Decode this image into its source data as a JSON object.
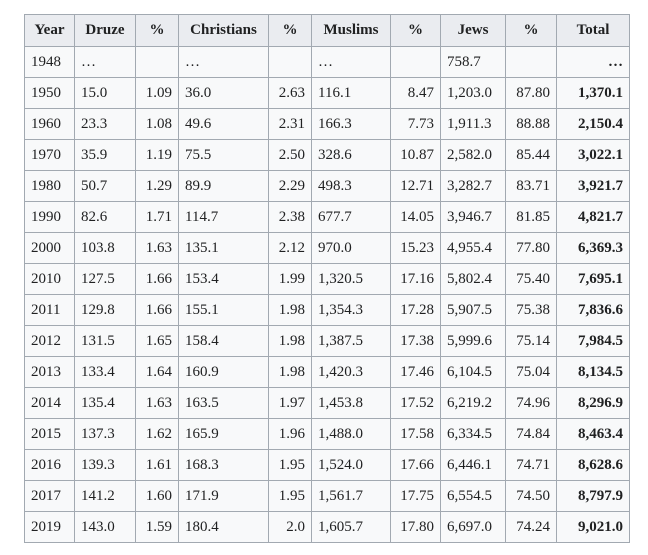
{
  "table": {
    "header": [
      "Year",
      "Druze",
      "%",
      "Christians",
      "%",
      "Muslims",
      "%",
      "Jews",
      "%",
      "Total"
    ],
    "rows": [
      [
        "1948",
        "…",
        null,
        "…",
        null,
        "…",
        null,
        "758.7",
        null,
        "…"
      ],
      [
        "1950",
        "15.0",
        "1.09",
        "36.0",
        "2.63",
        "116.1",
        "8.47",
        "1,203.0",
        "87.80",
        "1,370.1"
      ],
      [
        "1960",
        "23.3",
        "1.08",
        "49.6",
        "2.31",
        "166.3",
        "7.73",
        "1,911.3",
        "88.88",
        "2,150.4"
      ],
      [
        "1970",
        "35.9",
        "1.19",
        "75.5",
        "2.50",
        "328.6",
        "10.87",
        "2,582.0",
        "85.44",
        "3,022.1"
      ],
      [
        "1980",
        "50.7",
        "1.29",
        "89.9",
        "2.29",
        "498.3",
        "12.71",
        "3,282.7",
        "83.71",
        "3,921.7"
      ],
      [
        "1990",
        "82.6",
        "1.71",
        "114.7",
        "2.38",
        "677.7",
        "14.05",
        "3,946.7",
        "81.85",
        "4,821.7"
      ],
      [
        "2000",
        "103.8",
        "1.63",
        "135.1",
        "2.12",
        "970.0",
        "15.23",
        "4,955.4",
        "77.80",
        "6,369.3"
      ],
      [
        "2010",
        "127.5",
        "1.66",
        "153.4",
        "1.99",
        "1,320.5",
        "17.16",
        "5,802.4",
        "75.40",
        "7,695.1"
      ],
      [
        "2011",
        "129.8",
        "1.66",
        "155.1",
        "1.98",
        "1,354.3",
        "17.28",
        "5,907.5",
        "75.38",
        "7,836.6"
      ],
      [
        "2012",
        "131.5",
        "1.65",
        "158.4",
        "1.98",
        "1,387.5",
        "17.38",
        "5,999.6",
        "75.14",
        "7,984.5"
      ],
      [
        "2013",
        "133.4",
        "1.64",
        "160.9",
        "1.98",
        "1,420.3",
        "17.46",
        "6,104.5",
        "75.04",
        "8,134.5"
      ],
      [
        "2014",
        "135.4",
        "1.63",
        "163.5",
        "1.97",
        "1,453.8",
        "17.52",
        "6,219.2",
        "74.96",
        "8,296.9"
      ],
      [
        "2015",
        "137.3",
        "1.62",
        "165.9",
        "1.96",
        "1,488.0",
        "17.58",
        "6,334.5",
        "74.84",
        "8,463.4"
      ],
      [
        "2016",
        "139.3",
        "1.61",
        "168.3",
        "1.95",
        "1,524.0",
        "17.66",
        "6,446.1",
        "74.71",
        "8,628.6"
      ],
      [
        "2017",
        "141.2",
        "1.60",
        "171.9",
        "1.95",
        "1,561.7",
        "17.75",
        "6,554.5",
        "74.50",
        "8,797.9"
      ],
      [
        "2019",
        "143.0",
        "1.59",
        "180.4",
        "2.0",
        "1,605.7",
        "17.80",
        "6,697.0",
        "74.24",
        "9,021.0"
      ]
    ]
  }
}
